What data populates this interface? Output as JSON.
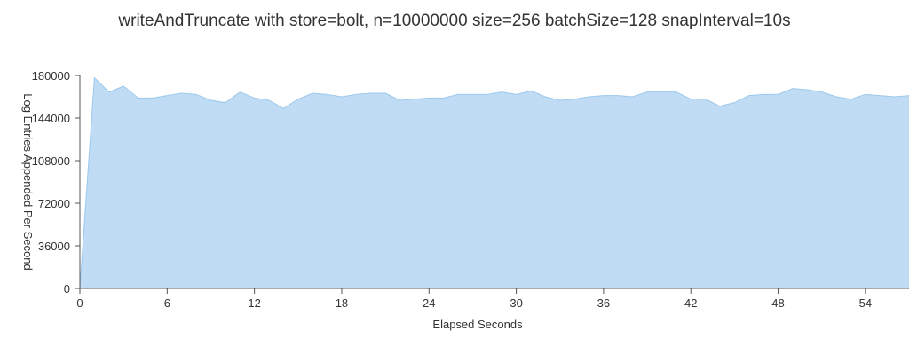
{
  "chart_data": {
    "type": "area",
    "title": "writeAndTruncate with store=bolt, n=10000000 size=256 batchSize=128 snapInterval=10s",
    "xlabel": "Elapsed Seconds",
    "ylabel": "Log Entries Appended Per Second",
    "xlim": [
      0,
      57
    ],
    "ylim": [
      0,
      180000
    ],
    "x_ticks": [
      "0",
      "6",
      "12",
      "18",
      "24",
      "30",
      "36",
      "42",
      "48",
      "54"
    ],
    "y_ticks": [
      "0",
      "36000",
      "72000",
      "108000",
      "144000",
      "180000"
    ],
    "grid": false,
    "legend": "none",
    "colors": {
      "fill": "#bfdcf4",
      "line": "#9cc8ec",
      "axis": "#555555",
      "text": "#333333"
    },
    "series": [
      {
        "x": [
          0,
          1,
          2,
          3,
          4,
          5,
          6,
          7,
          8,
          9,
          10,
          11,
          12,
          13,
          14,
          15,
          16,
          17,
          18,
          19,
          20,
          21,
          22,
          23,
          24,
          25,
          26,
          27,
          28,
          29,
          30,
          31,
          32,
          33,
          34,
          35,
          36,
          37,
          38,
          39,
          40,
          41,
          42,
          43,
          44,
          45,
          46,
          47,
          48,
          49,
          50,
          51,
          52,
          53,
          54,
          55,
          56,
          57
        ],
        "y": [
          0,
          178000,
          166000,
          171000,
          161000,
          161000,
          163000,
          165000,
          164000,
          159000,
          157000,
          166000,
          161000,
          159000,
          152000,
          160000,
          165000,
          164000,
          162000,
          164000,
          165000,
          165000,
          159000,
          160000,
          161000,
          161000,
          164000,
          164000,
          164000,
          166000,
          164000,
          167000,
          162000,
          159000,
          160000,
          162000,
          163000,
          163000,
          162000,
          166000,
          166000,
          166000,
          160000,
          160000,
          154000,
          157000,
          163000,
          164000,
          164000,
          169000,
          168000,
          166000,
          162000,
          160000,
          164000,
          163000,
          162000,
          163000
        ]
      }
    ]
  }
}
